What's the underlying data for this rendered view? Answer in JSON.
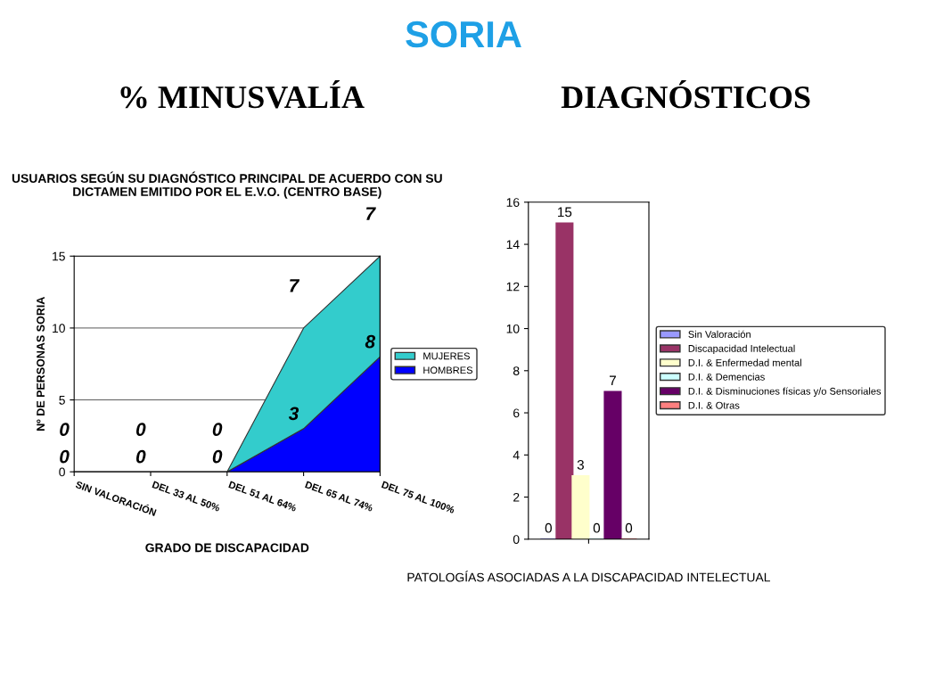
{
  "chart_data": [
    {
      "type": "area",
      "title": "% MINUSVALÍA",
      "subtitle": "USUARIOS SEGÚN SU DIAGNÓSTICO PRINCIPAL DE ACUERDO CON SU DICTAMEN EMITIDO POR EL E.V.O. (CENTRO BASE)",
      "annotations": [
        "SORIA"
      ],
      "ylabel": "Nº DE PERSONAS SORIA",
      "xlabel": "GRADO DE DISCAPACIDAD",
      "categories": [
        "SIN VALORACIÓN",
        "DEL 33 AL 50%",
        "DEL 51 AL 64%",
        "DEL 65 AL 74%",
        "DEL 75 AL 100%"
      ],
      "stacked": true,
      "ylim": [
        0,
        15
      ],
      "yticks": [
        0,
        5,
        10,
        15
      ],
      "grid": "y",
      "legend": "right",
      "data_labels": true,
      "series": [
        {
          "name": "HOMBRES",
          "color": "#0000ff",
          "values": [
            0,
            0,
            0,
            3,
            8
          ]
        },
        {
          "name": "MUJERES",
          "color": "#33cccc",
          "values": [
            0,
            0,
            0,
            7,
            7
          ]
        }
      ]
    },
    {
      "type": "bar",
      "title": "DIAGNÓSTICOS",
      "xlabel": "PATOLOGÍAS ASOCIADAS A LA DISCAPACIDAD INTELECTUAL",
      "categories": [
        null
      ],
      "ylim": [
        0,
        16
      ],
      "yticks": [
        0,
        2,
        4,
        6,
        8,
        10,
        12,
        14,
        16
      ],
      "legend": "right",
      "data_labels": true,
      "series": [
        {
          "name": "Sin Valoración",
          "color": "#9999ff",
          "values": [
            0
          ]
        },
        {
          "name": "Discapacidad Intelectual",
          "color": "#993366",
          "values": [
            15
          ]
        },
        {
          "name": "D.I. & Enfermedad mental",
          "color": "#ffffcc",
          "values": [
            3
          ]
        },
        {
          "name": "D.I. & Demencias",
          "color": "#ccffff",
          "values": [
            0
          ]
        },
        {
          "name": "D.I. & Disminuciones físicas y/o Sensoriales",
          "color": "#660066",
          "values": [
            7
          ]
        },
        {
          "name": "D.I. & Otras",
          "color": "#ff8080",
          "values": [
            0
          ]
        }
      ]
    }
  ]
}
